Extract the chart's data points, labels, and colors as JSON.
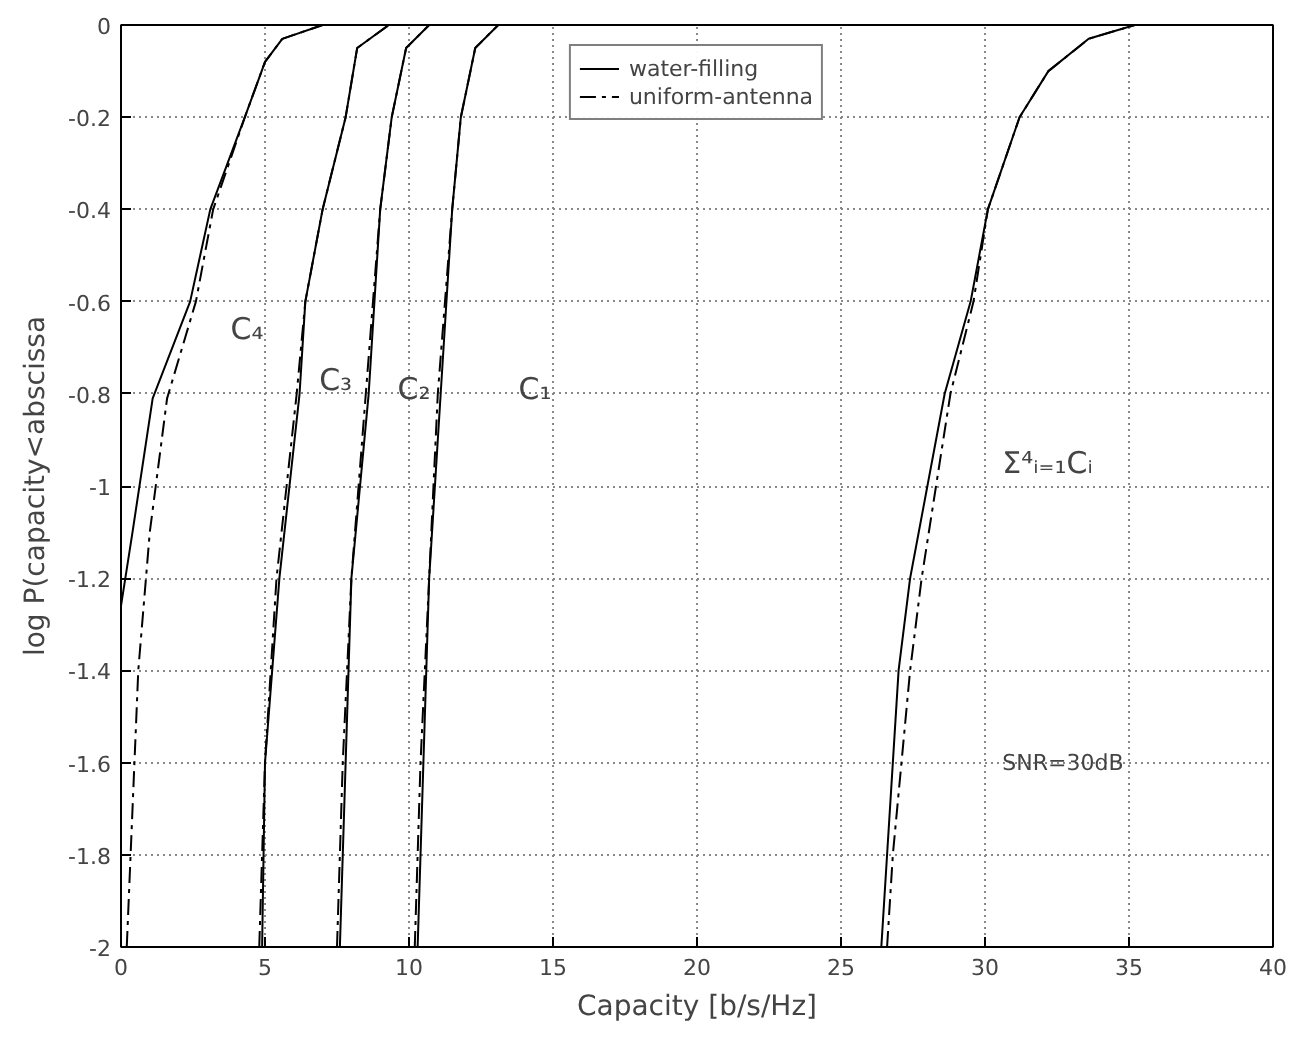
{
  "chart_data": {
    "type": "line",
    "xlabel": "Capacity [b/s/Hz]",
    "ylabel": "log P(capacity<abscissa",
    "xlim": [
      0,
      40
    ],
    "ylim": [
      -2,
      0
    ],
    "xticks": [
      0,
      5,
      10,
      15,
      20,
      25,
      30,
      35,
      40
    ],
    "yticks": [
      -2,
      -1.8,
      -1.6,
      -1.4,
      -1.2,
      -1,
      -0.8,
      -0.6,
      -0.4,
      -0.2,
      0
    ],
    "grid": true,
    "legend": "top",
    "marker": "none",
    "series": [
      {
        "name": "water-filling",
        "color": "#000000",
        "line_style": "solid",
        "x": [
          0,
          0.4,
          1.1,
          2.4,
          3.1,
          4.3,
          5.0,
          5.6,
          7.0
        ],
        "values": [
          -1.26,
          -1.1,
          -0.81,
          -0.6,
          -0.4,
          -0.2,
          -0.08,
          -0.03,
          0
        ]
      },
      {
        "name": "uniform-antenna",
        "color": "#000000",
        "line_style": "dashed",
        "x": [
          0.2,
          0.6,
          1.0,
          1.6,
          2.6,
          3.2,
          4.3,
          5.0,
          5.6,
          7.0
        ],
        "values": [
          -2,
          -1.4,
          -1.1,
          -0.81,
          -0.6,
          -0.4,
          -0.2,
          -0.08,
          -0.03,
          0
        ]
      },
      {
        "color": "#000000",
        "line_style": "solid",
        "x": [
          4.9,
          5.0,
          5.5,
          6.2,
          6.4,
          7.0,
          7.8,
          8.2,
          9.3
        ],
        "values": [
          -2,
          -1.6,
          -1.2,
          -0.8,
          -0.6,
          -0.4,
          -0.2,
          -0.05,
          0
        ]
      },
      {
        "color": "#000000",
        "line_style": "dashed",
        "x": [
          4.8,
          5.0,
          5.4,
          6.1,
          6.4,
          7.0,
          7.8,
          8.2,
          9.3
        ],
        "values": [
          -2,
          -1.6,
          -1.2,
          -0.8,
          -0.6,
          -0.4,
          -0.2,
          -0.05,
          0
        ]
      },
      {
        "color": "#000000",
        "line_style": "solid",
        "x": [
          7.6,
          7.8,
          8.0,
          8.6,
          9.0,
          9.4,
          9.9,
          10.7
        ],
        "values": [
          -2,
          -1.6,
          -1.2,
          -0.8,
          -0.4,
          -0.2,
          -0.05,
          0
        ]
      },
      {
        "color": "#000000",
        "line_style": "dashed",
        "x": [
          7.5,
          7.7,
          8.0,
          8.5,
          9.0,
          9.4,
          9.9,
          10.7
        ],
        "values": [
          -2,
          -1.6,
          -1.2,
          -0.8,
          -0.4,
          -0.2,
          -0.05,
          0
        ]
      },
      {
        "color": "#000000",
        "line_style": "solid",
        "x": [
          10.3,
          10.5,
          10.7,
          11.1,
          11.5,
          11.8,
          12.3,
          13.1
        ],
        "values": [
          -2,
          -1.6,
          -1.2,
          -0.8,
          -0.4,
          -0.2,
          -0.05,
          0
        ]
      },
      {
        "color": "#000000",
        "line_style": "dashed",
        "x": [
          10.2,
          10.4,
          10.7,
          11.0,
          11.5,
          11.8,
          12.3,
          13.1
        ],
        "values": [
          -2,
          -1.6,
          -1.2,
          -0.8,
          -0.4,
          -0.2,
          -0.05,
          0
        ]
      },
      {
        "color": "#000000",
        "line_style": "solid",
        "x": [
          26.4,
          26.6,
          26.8,
          27.0,
          27.4,
          28.0,
          28.6,
          29.5,
          30.1,
          31.2,
          32.2,
          33.6,
          35.2,
          36.9
        ],
        "values": [
          -2,
          -1.8,
          -1.6,
          -1.4,
          -1.2,
          -1.0,
          -0.8,
          -0.6,
          -0.4,
          -0.2,
          -0.1,
          -0.03,
          0,
          0
        ]
      },
      {
        "color": "#000000",
        "line_style": "dashed",
        "x": [
          26.6,
          26.8,
          27.1,
          27.4,
          27.8,
          28.3,
          28.8,
          29.6,
          30.1,
          31.2,
          32.2,
          33.6,
          35.2,
          36.9
        ],
        "values": [
          -2,
          -1.8,
          -1.6,
          -1.4,
          -1.2,
          -1.0,
          -0.8,
          -0.6,
          -0.4,
          -0.2,
          -0.1,
          -0.03,
          0,
          0
        ]
      }
    ],
    "annotations": [
      "C₄",
      "C₃",
      "C₂",
      "C₁",
      "Σ⁴ᵢ₌₁Cᵢ",
      "SNR=30dB"
    ]
  }
}
